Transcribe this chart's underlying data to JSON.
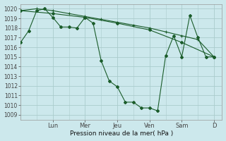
{
  "background_color": "#cce8ec",
  "grid_color": "#aacccc",
  "line_color": "#1a5c2a",
  "xlabel": "Pression niveau de la mer( hPa )",
  "ylim": [
    1008.5,
    1020.5
  ],
  "yticks": [
    1009,
    1010,
    1011,
    1012,
    1013,
    1014,
    1015,
    1016,
    1017,
    1018,
    1019,
    1020
  ],
  "day_labels": [
    "Lun",
    "Mer",
    "Jeu",
    "Ven",
    "Sam",
    "D"
  ],
  "day_positions": [
    4,
    8,
    12,
    16,
    20,
    24
  ],
  "xlim": [
    0,
    25
  ],
  "line1_x": [
    0,
    1,
    2,
    3,
    4,
    5,
    6,
    7,
    8,
    9,
    10,
    11,
    12,
    13,
    14,
    15,
    16,
    17,
    18,
    19,
    20,
    21,
    22,
    23,
    24
  ],
  "line1_y": [
    1016.5,
    1017.7,
    1019.8,
    1020.0,
    1019.1,
    1018.1,
    1018.1,
    1018.0,
    1019.1,
    1018.5,
    1014.6,
    1012.5,
    1011.9,
    1010.3,
    1010.3,
    1009.7,
    1009.7,
    1009.4,
    1015.1,
    1017.2,
    1015.0,
    1019.3,
    1017.0,
    1015.0,
    1015.0
  ],
  "line2_x": [
    0,
    2,
    4,
    6,
    8,
    10,
    12,
    14,
    16,
    18,
    20,
    22,
    24
  ],
  "line2_y": [
    1019.8,
    1020.0,
    1019.8,
    1019.5,
    1019.2,
    1018.9,
    1018.6,
    1018.3,
    1018.0,
    1017.6,
    1017.2,
    1016.8,
    1015.0
  ],
  "line3_x": [
    0,
    4,
    8,
    12,
    16,
    20,
    24
  ],
  "line3_y": [
    1019.8,
    1019.5,
    1019.1,
    1018.5,
    1017.8,
    1016.5,
    1015.0
  ]
}
